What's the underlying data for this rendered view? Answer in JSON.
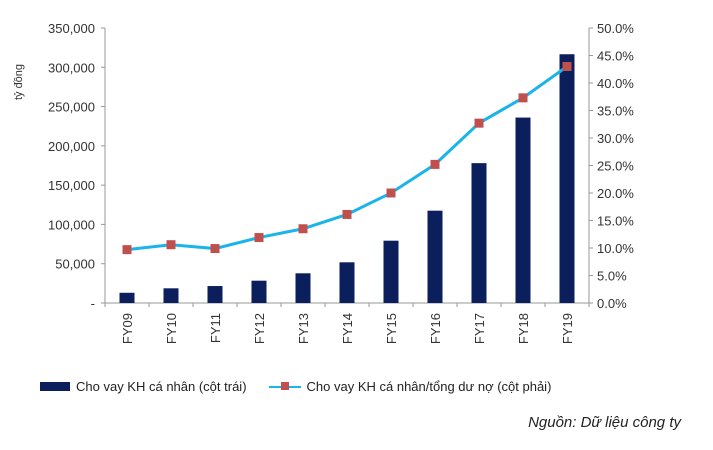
{
  "chart_data": {
    "type": "bar",
    "categories": [
      "FY09",
      "FY10",
      "FY11",
      "FY12",
      "FY13",
      "FY14",
      "FY15",
      "FY16",
      "FY17",
      "FY18",
      "FY19"
    ],
    "series": [
      {
        "name": "Cho vay KH cá nhân (cột trái)",
        "type": "bar",
        "axis": "left",
        "color": "#0a1f5c",
        "values": [
          13000,
          18700,
          21600,
          28400,
          37800,
          51800,
          79300,
          117500,
          178000,
          236000,
          316600
        ]
      },
      {
        "name": "Cho vay KH cá nhân/tổng dư nợ (cột phải)",
        "type": "line",
        "axis": "right",
        "color": "#1ab4ea",
        "marker_color": "#c0504d",
        "values": [
          9.7,
          10.6,
          9.9,
          11.9,
          13.5,
          16.1,
          20.0,
          25.2,
          32.7,
          37.3,
          43.0
        ]
      }
    ],
    "ylabel": "tỷ đồng",
    "ylim": [
      0,
      350000
    ],
    "y2lim": [
      0,
      50
    ],
    "yticks": [
      "-",
      "50,000",
      "100,000",
      "150,000",
      "200,000",
      "250,000",
      "300,000",
      "350,000"
    ],
    "y2ticks": [
      "0.0%",
      "5.0%",
      "10.0%",
      "15.0%",
      "20.0%",
      "25.0%",
      "30.0%",
      "35.0%",
      "40.0%",
      "45.0%",
      "50.0%"
    ],
    "grid": false,
    "legend_placement": "bottom"
  },
  "source": "Nguồn: Dữ liệu công ty"
}
